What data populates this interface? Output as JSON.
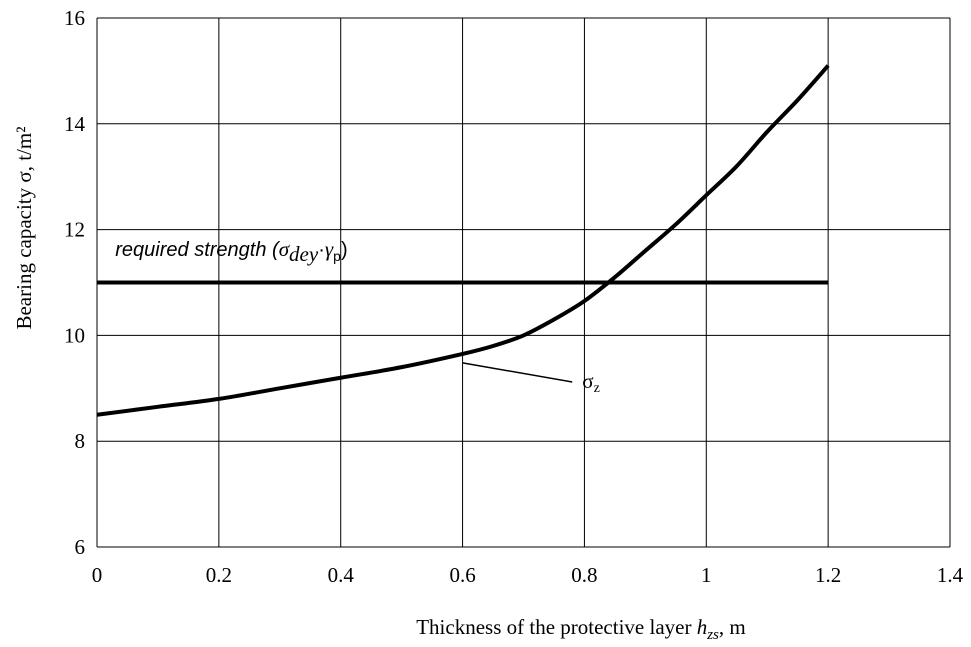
{
  "chart_data": {
    "type": "line",
    "xlabel": {
      "prefix": "Thickness of the protective layer ",
      "var_main": "h",
      "var_sub": "zs",
      "suffix": ", m"
    },
    "ylabel": "Bearing capacity σ, t/m²",
    "xlim": [
      0,
      1.4
    ],
    "ylim": [
      6,
      16
    ],
    "x_ticks": [
      "0",
      "0.2",
      "0.4",
      "0.6",
      "0.8",
      "1",
      "1.2",
      "1.4"
    ],
    "y_ticks": [
      "6",
      "8",
      "10",
      "12",
      "14",
      "16"
    ],
    "grid": true,
    "series": [
      {
        "name": "σz",
        "name_main": "σ",
        "name_sub": "z",
        "x": [
          0,
          0.1,
          0.2,
          0.3,
          0.4,
          0.5,
          0.6,
          0.65,
          0.7,
          0.75,
          0.8,
          0.85,
          0.9,
          0.95,
          1.0,
          1.05,
          1.1,
          1.15,
          1.2
        ],
        "y": [
          8.5,
          8.65,
          8.8,
          9.0,
          9.2,
          9.4,
          9.65,
          9.8,
          10.0,
          10.3,
          10.65,
          11.1,
          11.6,
          12.1,
          12.65,
          13.2,
          13.85,
          14.45,
          15.1
        ],
        "color": "#000000"
      },
      {
        "name": "required strength (σdey·γp)",
        "x": [
          0,
          1.2
        ],
        "y": [
          11.0,
          11.0
        ],
        "color": "#000000"
      }
    ],
    "annotations": {
      "required": {
        "prefix": "required strength (",
        "sigma": "σ",
        "sigma_sub": "dey",
        "dot": "·",
        "gamma": "γ",
        "gamma_sub": "p",
        "suffix": ")",
        "x": 0.03,
        "y": 11.5
      },
      "sigma_z_label": {
        "main": "σ",
        "sub": "z",
        "leader_from": [
          0.6,
          9.48
        ],
        "leader_to": [
          0.78,
          9.12
        ]
      }
    }
  }
}
